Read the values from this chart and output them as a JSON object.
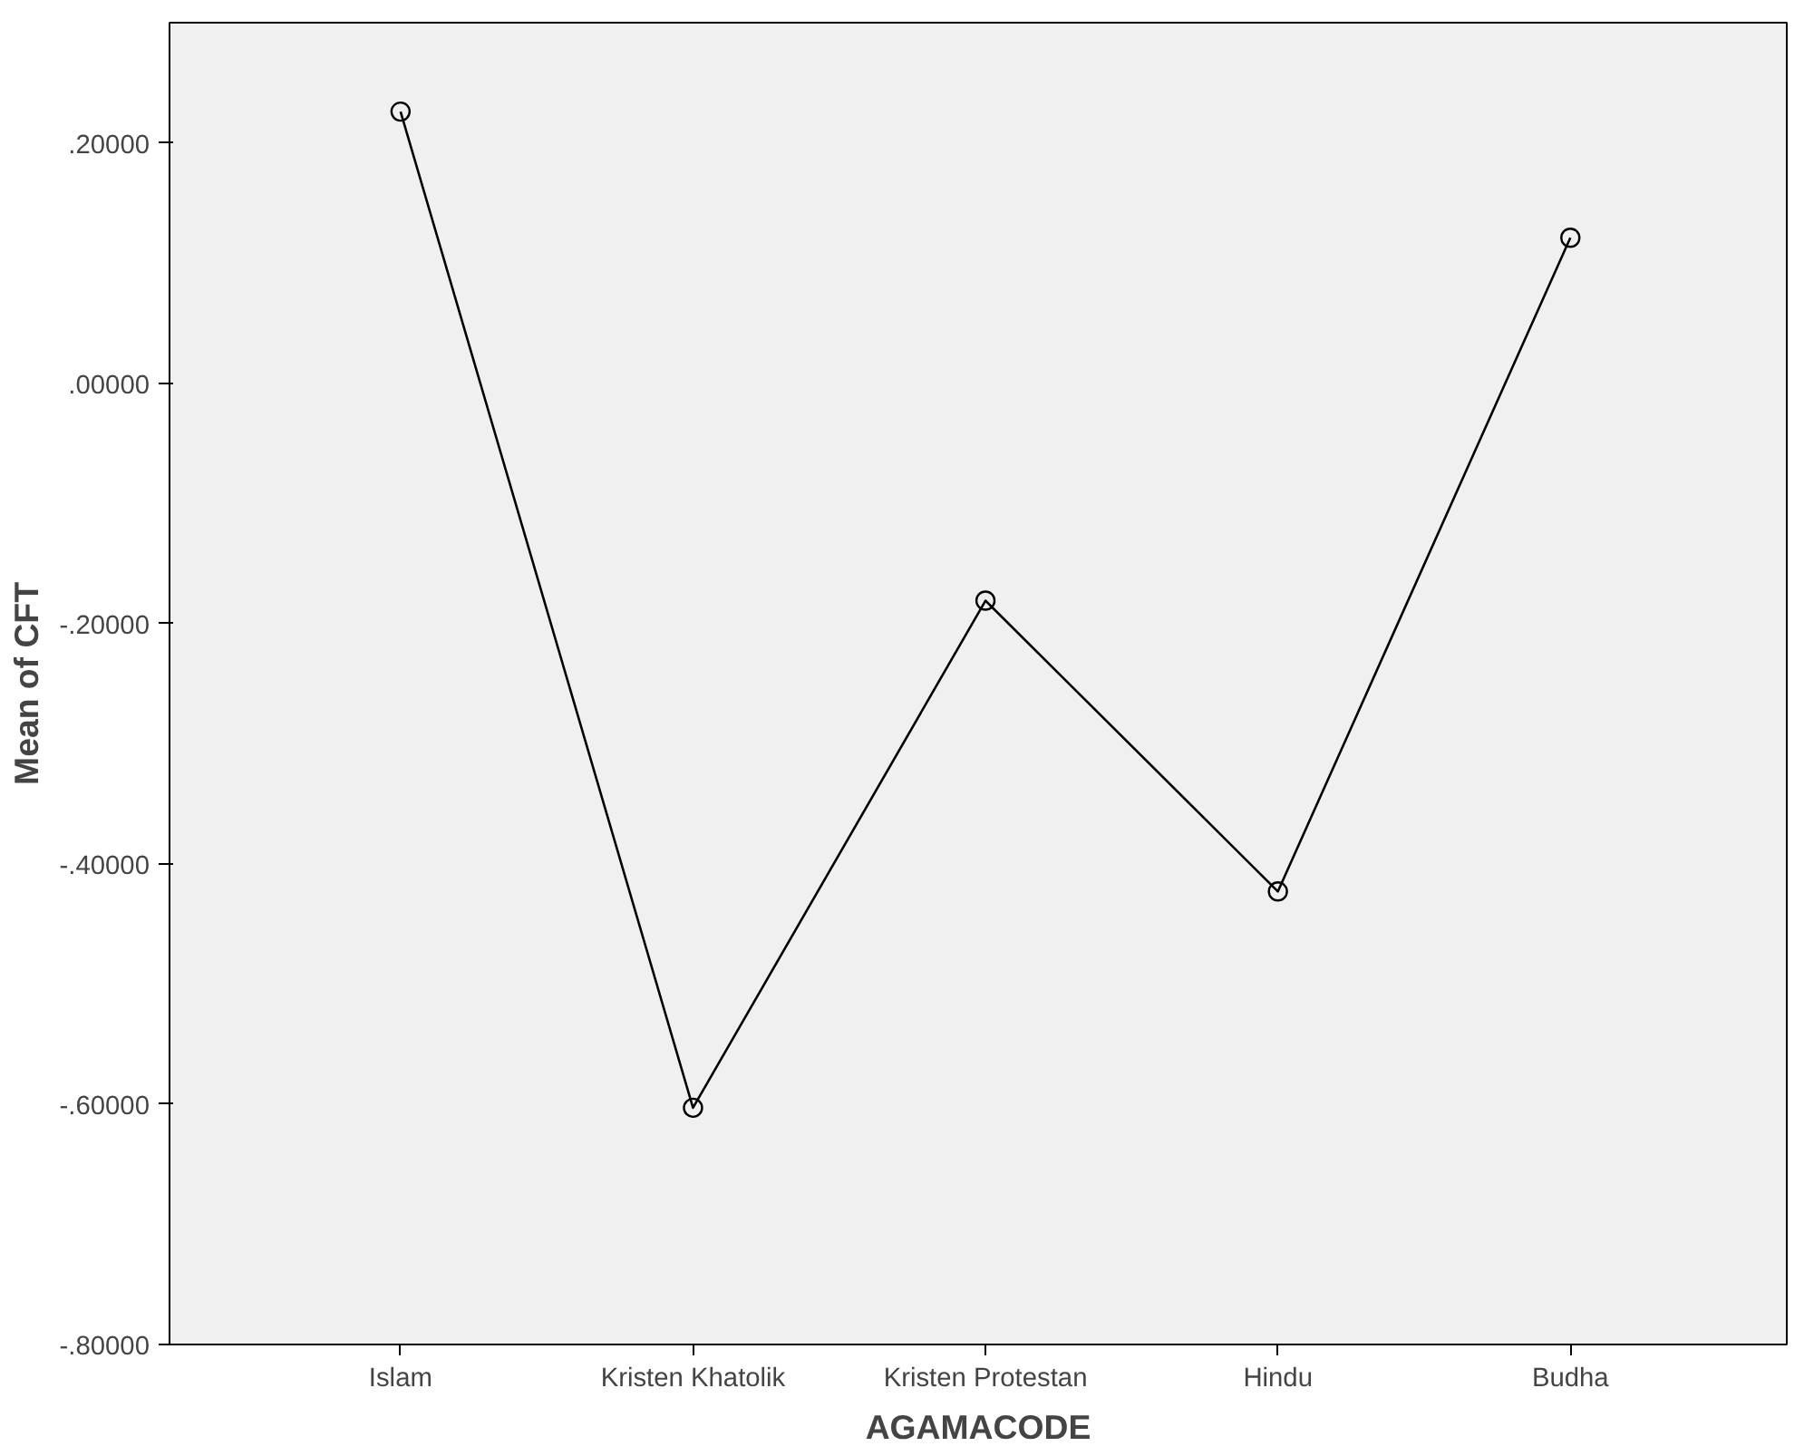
{
  "chart_data": {
    "type": "line",
    "xlabel": "AGAMACODE",
    "ylabel": "Mean of CFT",
    "categories": [
      "Islam",
      "Kristen Khatolik",
      "Kristen Protestan",
      "Hindu",
      "Budha"
    ],
    "series": [
      {
        "color": "#000000",
        "values": [
          0.226,
          -0.603,
          -0.181,
          -0.423,
          0.121
        ]
      }
    ],
    "ylim": [
      -0.8,
      0.3
    ],
    "yticks": [
      {
        "value": 0.2,
        "label": ".20000"
      },
      {
        "value": 0.0,
        "label": ".00000"
      },
      {
        "value": -0.2,
        "label": "-.20000"
      },
      {
        "value": -0.4,
        "label": "-.40000"
      },
      {
        "value": -0.6,
        "label": "-.60000"
      },
      {
        "value": -0.8,
        "label": "-.80000"
      }
    ],
    "marker": "circle",
    "line_style": "solid"
  }
}
